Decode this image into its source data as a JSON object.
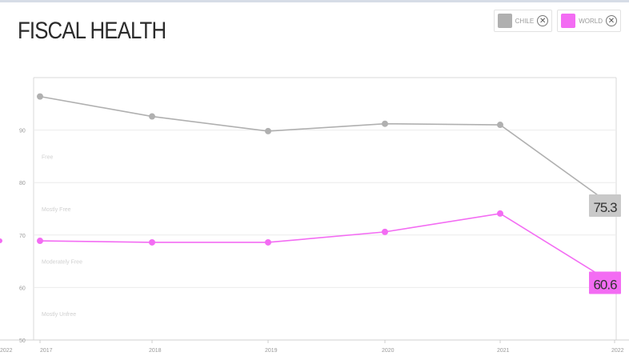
{
  "title": "FISCAL HEALTH",
  "legend": [
    {
      "label": "CHILE",
      "color": "#b0b0b0"
    },
    {
      "label": "WORLD",
      "color": "#f36cf3"
    }
  ],
  "chart_data": {
    "type": "line",
    "title": "FISCAL HEALTH",
    "x": [
      "2017",
      "2018",
      "2019",
      "2020",
      "2021",
      "2022"
    ],
    "x_edge_left": "2022",
    "ylim": [
      50,
      100
    ],
    "yticks": [
      "50",
      "60",
      "70",
      "80",
      "90"
    ],
    "bands": [
      {
        "label": "Free",
        "y": 85
      },
      {
        "label": "Mostly Free",
        "y": 75
      },
      {
        "label": "Moderately Free",
        "y": 65
      },
      {
        "label": "Mostly Unfree",
        "y": 55
      }
    ],
    "series": [
      {
        "name": "CHILE",
        "color": "#b0b0b0",
        "values": [
          96.4,
          92.6,
          89.8,
          91.2,
          91.0,
          75.3
        ],
        "end_label": "75.3"
      },
      {
        "name": "WORLD",
        "color": "#f36cf3",
        "values": [
          68.9,
          68.6,
          68.6,
          70.6,
          74.1,
          60.6
        ],
        "end_label": "60.6"
      }
    ]
  }
}
